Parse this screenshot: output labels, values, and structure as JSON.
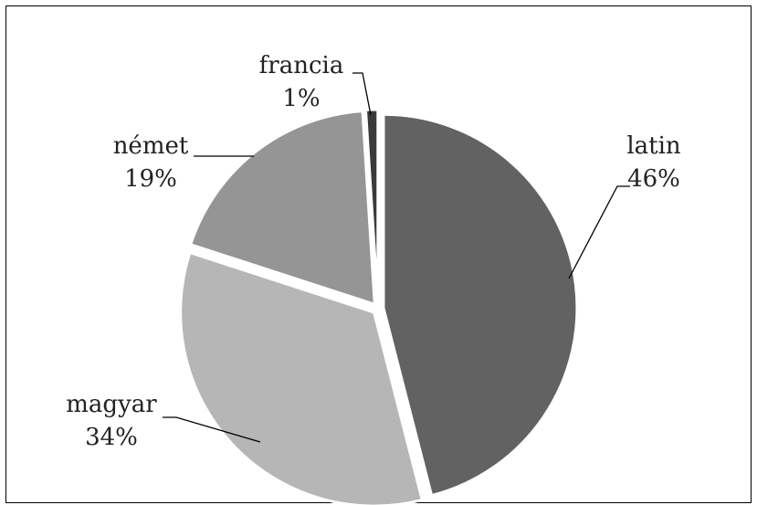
{
  "chart_data": {
    "type": "pie",
    "slices": [
      {
        "label": "latin",
        "value": 46,
        "display": "46%",
        "color": "#626262"
      },
      {
        "label": "magyar",
        "value": 34,
        "display": "34%",
        "color": "#b6b6b6"
      },
      {
        "label": "német",
        "value": 19,
        "display": "19%",
        "color": "#959595"
      },
      {
        "label": "francia",
        "value": 1,
        "display": "1%",
        "color": "#3a3a3a"
      }
    ],
    "title": "",
    "legend": "none"
  }
}
